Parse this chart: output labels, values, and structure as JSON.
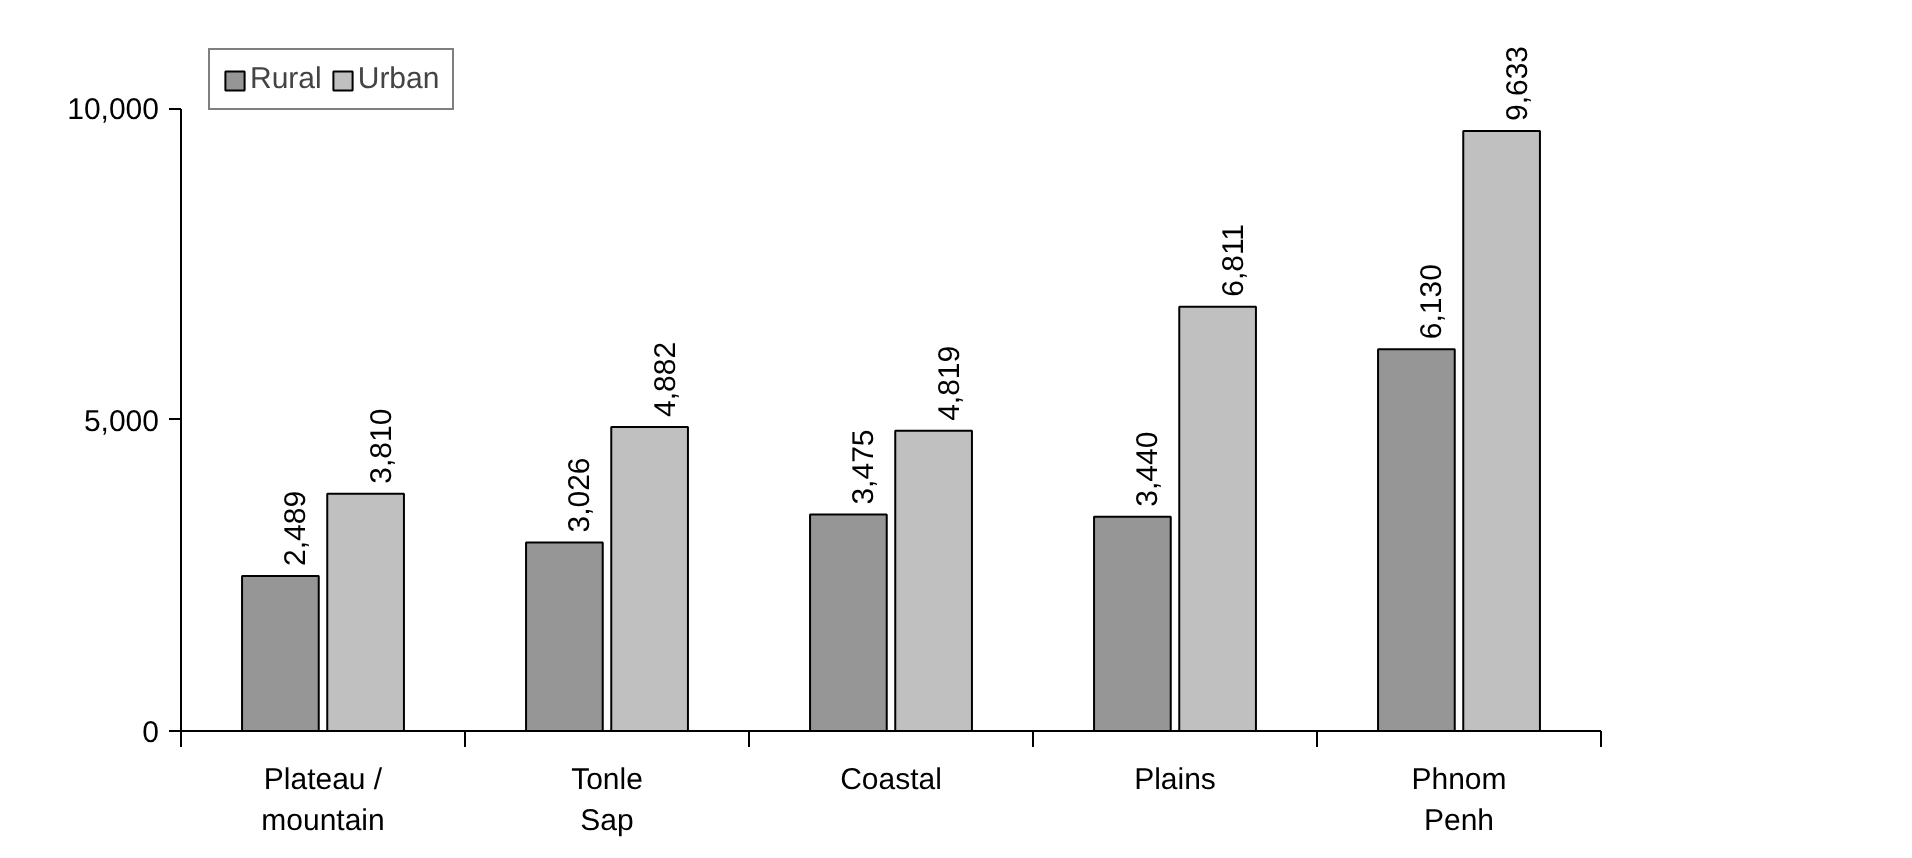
{
  "chart_data": {
    "type": "bar",
    "categories": [
      "Plateau /\nmountain",
      "Tonle\nSap",
      "Coastal",
      "Plains",
      "Phnom\nPenh"
    ],
    "series": [
      {
        "name": "Rural",
        "color": "#969696",
        "values": [
          2489,
          3026,
          3475,
          3440,
          6130
        ],
        "value_labels": [
          "2,489",
          "3,026",
          "3,475",
          "3,440",
          "6,130"
        ]
      },
      {
        "name": "Urban",
        "color": "#c0c0c0",
        "values": [
          3810,
          4882,
          4819,
          6811,
          9633
        ],
        "value_labels": [
          "3,810",
          "4,882",
          "4,819",
          "6,811",
          "9,633"
        ]
      }
    ],
    "ylim": [
      0,
      10000
    ],
    "yticks": [
      0,
      {
        "value": 5000,
        "label": "5,000"
      },
      {
        "value": 10000,
        "label": "10,000"
      }
    ],
    "grid": false,
    "legend": "top left"
  }
}
